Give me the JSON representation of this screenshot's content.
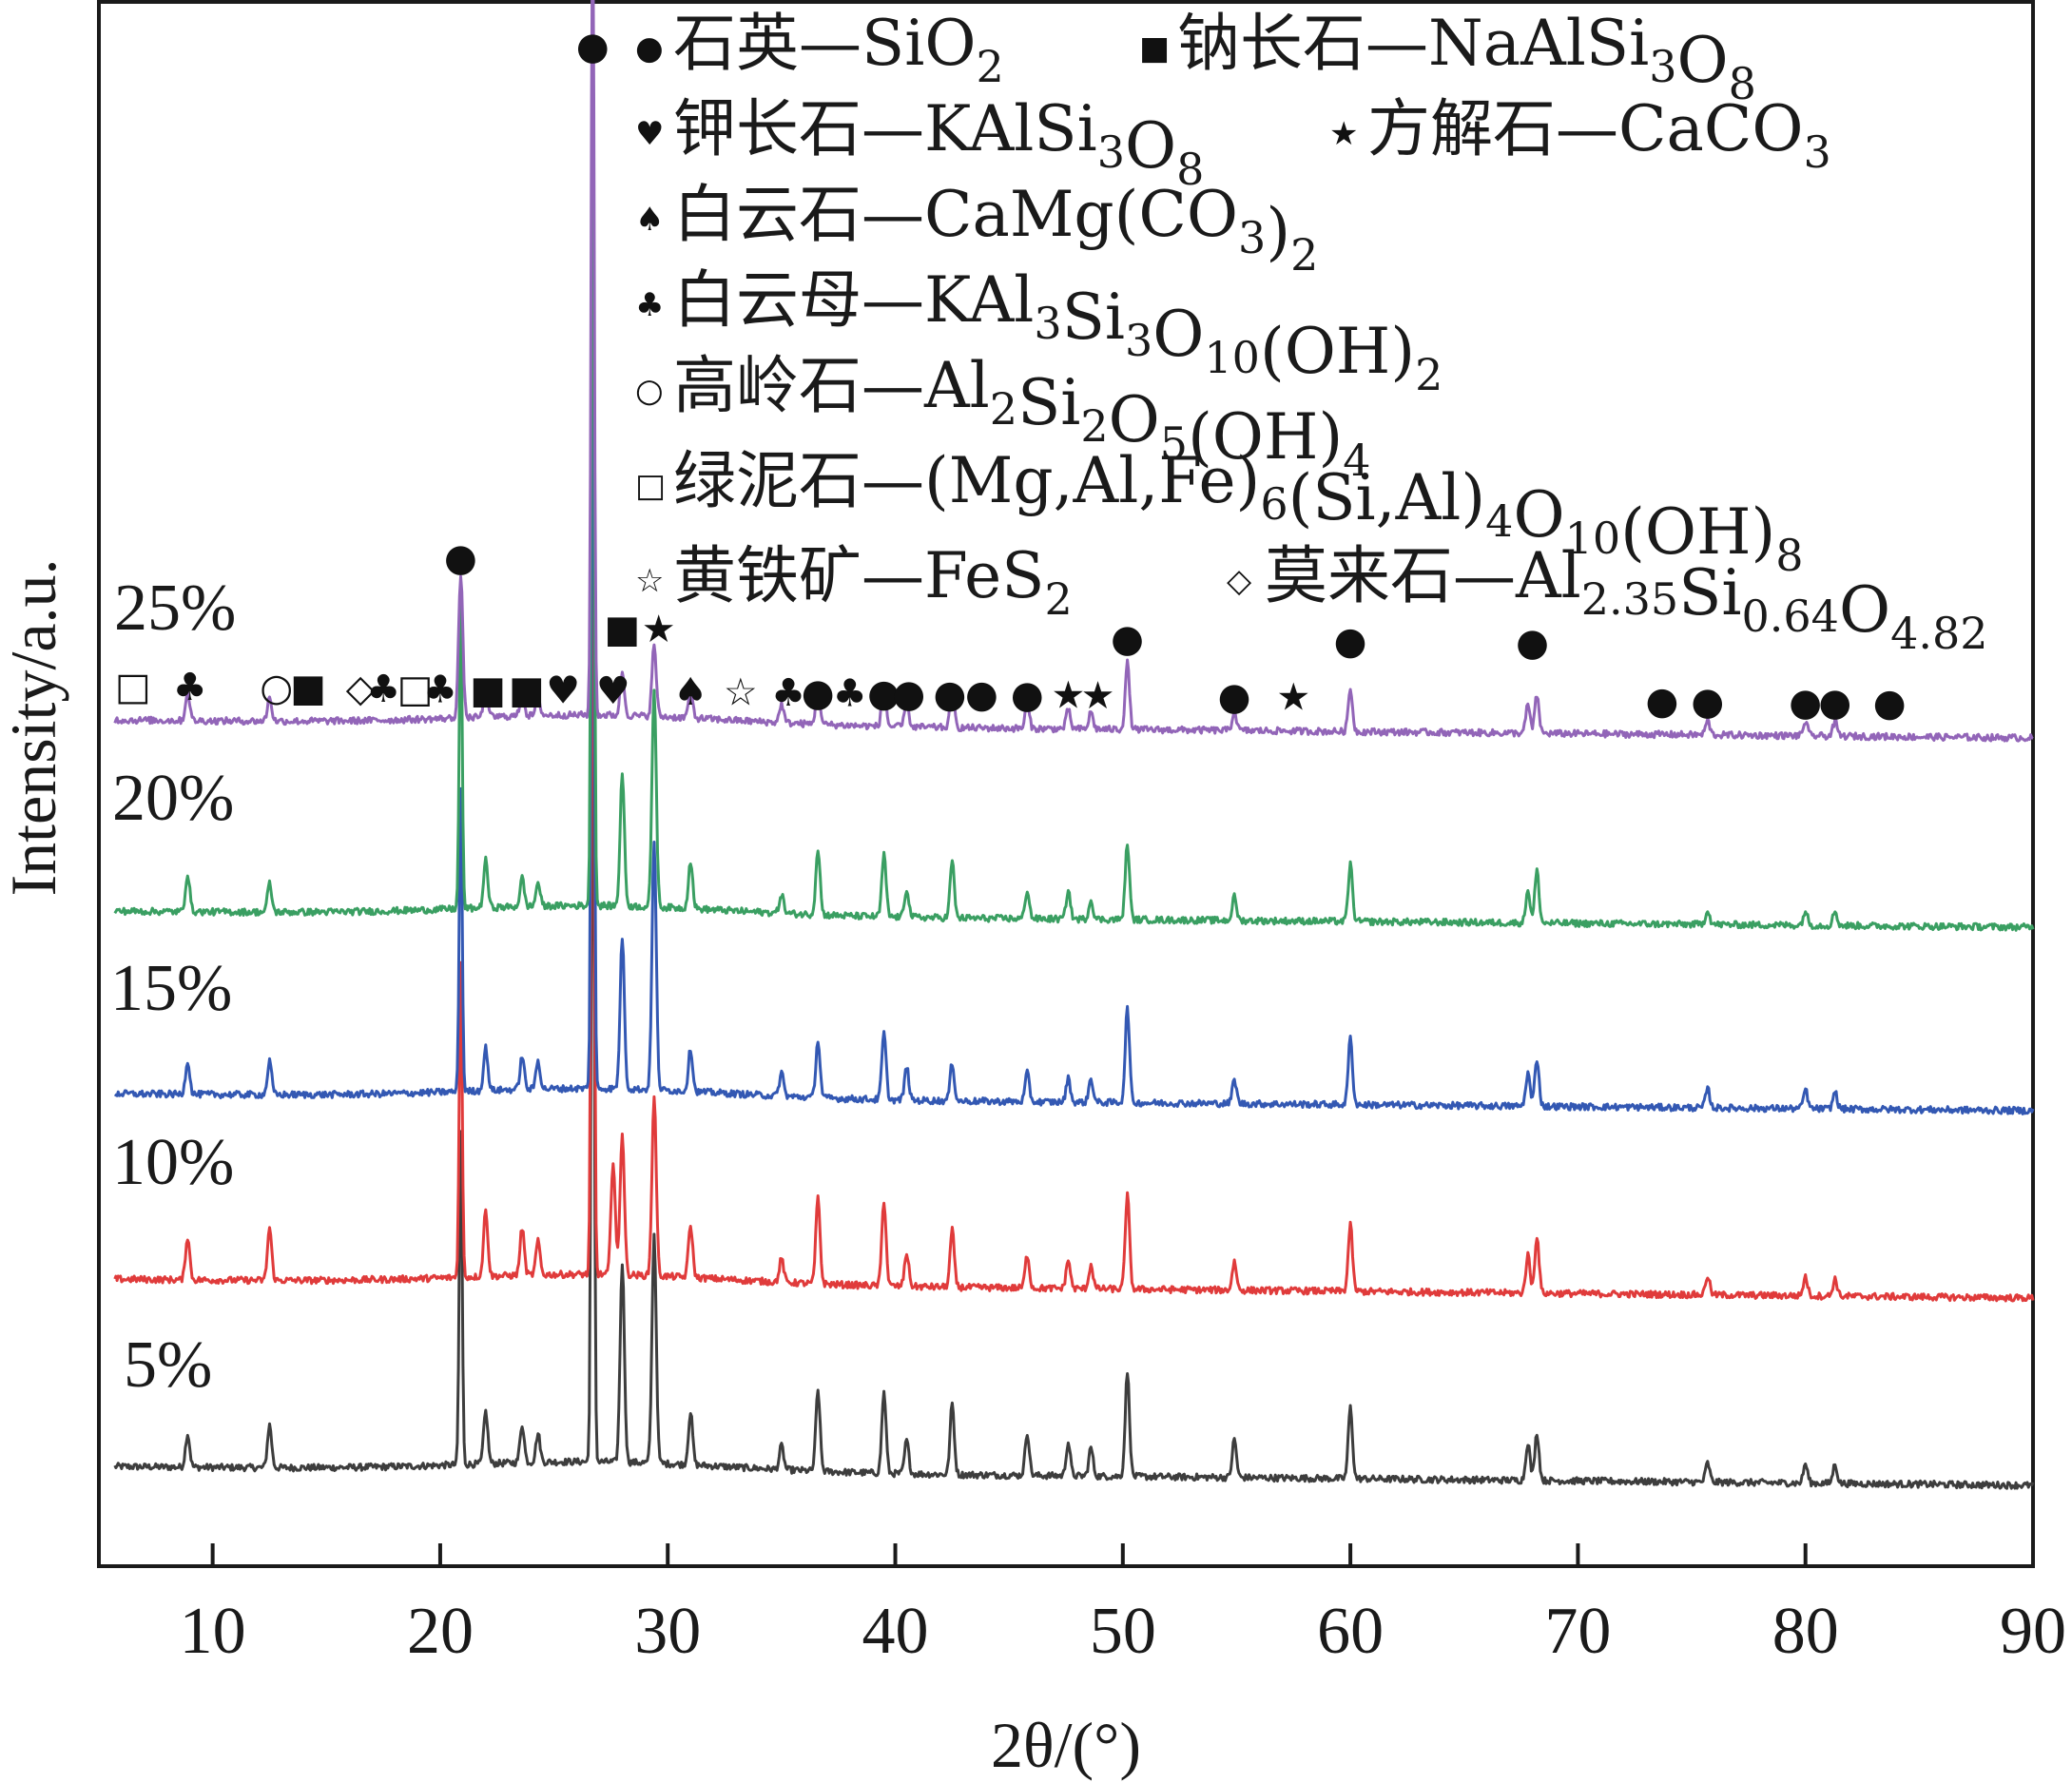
{
  "chart_data": {
    "type": "line",
    "xlabel": "2θ/(°)",
    "ylabel": "Intensity/a.u.",
    "xlim": [
      5,
      90
    ],
    "xticks": [
      10,
      20,
      30,
      40,
      50,
      60,
      70,
      80,
      90
    ],
    "grid": false,
    "series": [
      {
        "name": "5%",
        "color": "#3d3d3d",
        "baseline": 0.0,
        "peaks": [
          [
            8.9,
            35
          ],
          [
            12.5,
            45
          ],
          [
            20.9,
            350
          ],
          [
            22.0,
            55
          ],
          [
            23.6,
            40
          ],
          [
            24.3,
            30
          ],
          [
            26.7,
            880
          ],
          [
            28.0,
            210
          ],
          [
            29.4,
            240
          ],
          [
            31.0,
            55
          ],
          [
            35.0,
            25
          ],
          [
            36.6,
            85
          ],
          [
            39.5,
            85
          ],
          [
            40.5,
            35
          ],
          [
            42.5,
            75
          ],
          [
            45.8,
            45
          ],
          [
            47.6,
            35
          ],
          [
            48.6,
            30
          ],
          [
            50.2,
            110
          ],
          [
            54.9,
            40
          ],
          [
            60.0,
            75
          ],
          [
            67.8,
            40
          ],
          [
            68.2,
            50
          ],
          [
            75.7,
            20
          ],
          [
            80.0,
            20
          ],
          [
            81.3,
            20
          ]
        ]
      },
      {
        "name": "10%",
        "color": "#e03b3b",
        "baseline": 0.0,
        "peaks": [
          [
            8.9,
            45
          ],
          [
            12.5,
            55
          ],
          [
            20.9,
            330
          ],
          [
            22.0,
            70
          ],
          [
            23.6,
            50
          ],
          [
            24.3,
            35
          ],
          [
            26.7,
            880
          ],
          [
            27.6,
            120
          ],
          [
            28.0,
            150
          ],
          [
            29.4,
            190
          ],
          [
            31.0,
            55
          ],
          [
            35.0,
            25
          ],
          [
            36.6,
            90
          ],
          [
            39.5,
            90
          ],
          [
            40.5,
            35
          ],
          [
            42.5,
            60
          ],
          [
            45.8,
            35
          ],
          [
            47.6,
            30
          ],
          [
            48.6,
            25
          ],
          [
            50.2,
            100
          ],
          [
            54.9,
            30
          ],
          [
            60.0,
            70
          ],
          [
            67.8,
            40
          ],
          [
            68.2,
            60
          ],
          [
            75.7,
            20
          ],
          [
            80.0,
            20
          ],
          [
            81.3,
            18
          ]
        ]
      },
      {
        "name": "15%",
        "color": "#3358b3",
        "baseline": 0.0,
        "peaks": [
          [
            8.9,
            35
          ],
          [
            12.5,
            35
          ],
          [
            20.9,
            320
          ],
          [
            22.0,
            45
          ],
          [
            23.6,
            35
          ],
          [
            24.3,
            30
          ],
          [
            26.7,
            880
          ],
          [
            28.0,
            160
          ],
          [
            29.4,
            260
          ],
          [
            31.0,
            45
          ],
          [
            35.0,
            25
          ],
          [
            36.6,
            60
          ],
          [
            39.5,
            70
          ],
          [
            40.5,
            35
          ],
          [
            42.5,
            40
          ],
          [
            45.8,
            30
          ],
          [
            47.6,
            25
          ],
          [
            48.6,
            25
          ],
          [
            50.2,
            100
          ],
          [
            54.9,
            25
          ],
          [
            60.0,
            70
          ],
          [
            67.8,
            35
          ],
          [
            68.2,
            50
          ],
          [
            75.7,
            20
          ],
          [
            80.0,
            20
          ],
          [
            81.3,
            18
          ]
        ]
      },
      {
        "name": "20%",
        "color": "#3a9f62",
        "baseline": 0.0,
        "peaks": [
          [
            8.9,
            40
          ],
          [
            12.5,
            30
          ],
          [
            20.9,
            320
          ],
          [
            22.0,
            50
          ],
          [
            23.6,
            30
          ],
          [
            24.3,
            25
          ],
          [
            26.7,
            880
          ],
          [
            28.0,
            140
          ],
          [
            29.4,
            230
          ],
          [
            31.0,
            50
          ],
          [
            35.0,
            20
          ],
          [
            36.6,
            70
          ],
          [
            39.5,
            65
          ],
          [
            40.5,
            30
          ],
          [
            42.5,
            60
          ],
          [
            45.8,
            30
          ],
          [
            47.6,
            30
          ],
          [
            48.6,
            20
          ],
          [
            50.2,
            80
          ],
          [
            54.9,
            25
          ],
          [
            60.0,
            60
          ],
          [
            67.8,
            35
          ],
          [
            68.2,
            55
          ],
          [
            75.7,
            15
          ],
          [
            80.0,
            15
          ],
          [
            81.3,
            15
          ]
        ]
      },
      {
        "name": "25%",
        "color": "#9265b8",
        "baseline": 0.0,
        "peaks": [
          [
            8.9,
            30
          ],
          [
            12.5,
            25
          ],
          [
            20.9,
            150
          ],
          [
            22.0,
            30
          ],
          [
            23.6,
            25
          ],
          [
            24.3,
            20
          ],
          [
            26.7,
            880
          ],
          [
            28.0,
            45
          ],
          [
            29.4,
            75
          ],
          [
            31.0,
            30
          ],
          [
            35.0,
            20
          ],
          [
            36.6,
            40
          ],
          [
            39.5,
            45
          ],
          [
            40.5,
            25
          ],
          [
            42.5,
            40
          ],
          [
            45.8,
            25
          ],
          [
            47.6,
            20
          ],
          [
            48.6,
            18
          ],
          [
            50.2,
            70
          ],
          [
            54.9,
            20
          ],
          [
            60.0,
            45
          ],
          [
            67.8,
            30
          ],
          [
            68.2,
            40
          ],
          [
            75.7,
            15
          ],
          [
            80.0,
            15
          ],
          [
            81.3,
            15
          ]
        ]
      }
    ],
    "legend": [
      {
        "symbol": "●",
        "label": "石英—SiO",
        "sub": "2"
      },
      {
        "symbol": "■",
        "label": "钠长石—NaAlSi",
        "sub": "3",
        "label2": "O",
        "sub2": "8"
      },
      {
        "symbol": "♥",
        "label": "钾长石—KAlSi",
        "sub": "3",
        "label2": "O",
        "sub2": "8"
      },
      {
        "symbol": "★",
        "label": "方解石—CaCO",
        "sub": "3"
      },
      {
        "symbol": "♠",
        "label": "白云石—CaMg(CO",
        "sub": "3",
        "label2": ")",
        "sub2": "2"
      },
      {
        "symbol": "♣",
        "label": "白云母—KAl",
        "sub": "3",
        "label2": "Si",
        "sub2": "3",
        "label3": "O",
        "sub3": "10",
        "label4": "(OH)",
        "sub4": "2"
      },
      {
        "symbol": "○",
        "label": "高岭石—Al",
        "sub": "2",
        "label2": "Si",
        "sub2": "2",
        "label3": "O",
        "sub3": "5",
        "label4": "(OH)",
        "sub4": "4"
      },
      {
        "symbol": "□",
        "label": "绿泥石—(Mg,Al,Fe)",
        "sub": "6",
        "label2": "(Si,Al)",
        "sub2": "4",
        "label3": "O",
        "sub3": "10",
        "label4": "(OH)",
        "sub4": "8"
      },
      {
        "symbol": "☆",
        "label": "黄铁矿—FeS",
        "sub": "2"
      },
      {
        "symbol": "◇",
        "label": "莫来石—Al",
        "sub": "2.35",
        "label2": "Si",
        "sub2": "0.64",
        "label3": "O",
        "sub3": "4.82"
      }
    ],
    "phase_markers": [
      {
        "x": 6.5,
        "symbol": "□"
      },
      {
        "x": 9.0,
        "symbol": "♣"
      },
      {
        "x": 12.8,
        "symbol": "○"
      },
      {
        "x": 14.2,
        "symbol": "■"
      },
      {
        "x": 16.5,
        "symbol": "◇"
      },
      {
        "x": 17.5,
        "symbol": "♣"
      },
      {
        "x": 18.9,
        "symbol": "□"
      },
      {
        "x": 20.0,
        "symbol": "♣"
      },
      {
        "x": 20.9,
        "symbol": "●",
        "level": "mid"
      },
      {
        "x": 22.1,
        "symbol": "■"
      },
      {
        "x": 23.8,
        "symbol": "■"
      },
      {
        "x": 25.4,
        "symbol": "♥"
      },
      {
        "x": 26.7,
        "symbol": "●",
        "level": "top"
      },
      {
        "x": 27.6,
        "symbol": "♥"
      },
      {
        "x": 28.0,
        "symbol": "■",
        "level": "mid"
      },
      {
        "x": 29.6,
        "symbol": "★",
        "level": "mid"
      },
      {
        "x": 31.0,
        "symbol": "♠"
      },
      {
        "x": 33.2,
        "symbol": "☆"
      },
      {
        "x": 35.3,
        "symbol": "♣"
      },
      {
        "x": 36.6,
        "symbol": "●"
      },
      {
        "x": 38.0,
        "symbol": "♣"
      },
      {
        "x": 39.5,
        "symbol": "●"
      },
      {
        "x": 40.6,
        "symbol": "●"
      },
      {
        "x": 42.4,
        "symbol": "●"
      },
      {
        "x": 43.8,
        "symbol": "●"
      },
      {
        "x": 45.8,
        "symbol": "●"
      },
      {
        "x": 47.6,
        "symbol": "★"
      },
      {
        "x": 48.9,
        "symbol": "★"
      },
      {
        "x": 50.2,
        "symbol": "●",
        "level": "mid"
      },
      {
        "x": 54.9,
        "symbol": "●"
      },
      {
        "x": 57.5,
        "symbol": "★"
      },
      {
        "x": 60.0,
        "symbol": "●",
        "level": "mid"
      },
      {
        "x": 68.0,
        "symbol": "●",
        "level": "mid"
      },
      {
        "x": 73.7,
        "symbol": "●"
      },
      {
        "x": 75.7,
        "symbol": "●"
      },
      {
        "x": 80.0,
        "symbol": "●"
      },
      {
        "x": 81.3,
        "symbol": "●"
      },
      {
        "x": 83.7,
        "symbol": "●"
      }
    ]
  }
}
